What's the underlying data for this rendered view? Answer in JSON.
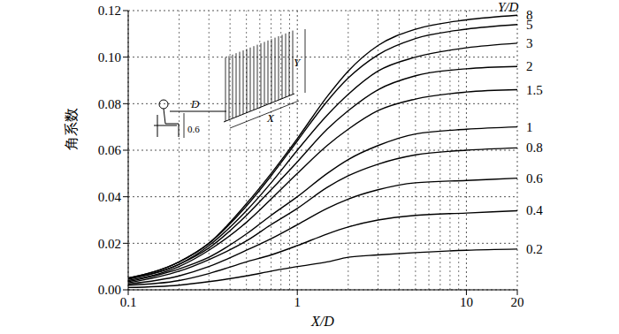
{
  "chart_data": {
    "type": "line",
    "x_label": "X/D",
    "y_label": "角系数",
    "series_title": "Y/D",
    "inset_labels": [
      "D",
      "Y",
      "X",
      "0.6"
    ],
    "log": "x",
    "grid": true,
    "color": "#000000",
    "xlim": [
      0.1,
      20
    ],
    "xticks": [
      0.1,
      1,
      10,
      20
    ],
    "ylim": [
      0,
      0.12
    ],
    "yticks": [
      {
        "value": 0,
        "label": "0.00"
      },
      {
        "value": 0.02,
        "label": "0.02"
      },
      {
        "value": 0.04,
        "label": "0.04"
      },
      {
        "value": 0.06,
        "label": "0.06"
      },
      {
        "value": 0.08,
        "label": "0.08"
      },
      {
        "value": 0.1,
        "label": "0.10"
      },
      {
        "value": 0.12,
        "label": "0.12"
      }
    ],
    "x": [
      0.1,
      0.2,
      0.3,
      0.5,
      0.7,
      1,
      1.5,
      2,
      3,
      5,
      10,
      20
    ],
    "series": [
      {
        "name": "8",
        "values": [
          0.005,
          0.012,
          0.02,
          0.037,
          0.05,
          0.065,
          0.083,
          0.094,
          0.105,
          0.112,
          0.116,
          0.118
        ]
      },
      {
        "name": "5",
        "values": [
          0.005,
          0.012,
          0.02,
          0.036,
          0.049,
          0.064,
          0.081,
          0.091,
          0.101,
          0.108,
          0.112,
          0.114
        ]
      },
      {
        "name": "3",
        "values": [
          0.005,
          0.011,
          0.019,
          0.034,
          0.046,
          0.06,
          0.075,
          0.084,
          0.094,
          0.1,
          0.104,
          0.106
        ]
      },
      {
        "name": "2",
        "values": [
          0.0045,
          0.011,
          0.018,
          0.032,
          0.043,
          0.055,
          0.069,
          0.077,
          0.086,
          0.092,
          0.095,
          0.096
        ]
      },
      {
        "name": "1.5",
        "values": [
          0.004,
          0.01,
          0.017,
          0.029,
          0.039,
          0.05,
          0.062,
          0.069,
          0.077,
          0.082,
          0.085,
          0.086
        ]
      },
      {
        "name": "1",
        "values": [
          0.0035,
          0.009,
          0.014,
          0.024,
          0.032,
          0.04,
          0.05,
          0.056,
          0.062,
          0.067,
          0.069,
          0.07
        ]
      },
      {
        "name": "0.8",
        "values": [
          0.003,
          0.008,
          0.013,
          0.021,
          0.028,
          0.035,
          0.044,
          0.049,
          0.054,
          0.058,
          0.06,
          0.061
        ]
      },
      {
        "name": "0.6",
        "values": [
          0.0025,
          0.006,
          0.01,
          0.017,
          0.022,
          0.028,
          0.035,
          0.039,
          0.043,
          0.046,
          0.047,
          0.048
        ]
      },
      {
        "name": "0.4",
        "values": [
          0.002,
          0.004,
          0.007,
          0.012,
          0.015,
          0.019,
          0.024,
          0.027,
          0.03,
          0.032,
          0.033,
          0.034
        ]
      },
      {
        "name": "0.2",
        "values": [
          0.001,
          0.002,
          0.0035,
          0.006,
          0.008,
          0.01,
          0.012,
          0.014,
          0.015,
          0.016,
          0.017,
          0.0175
        ]
      }
    ]
  }
}
